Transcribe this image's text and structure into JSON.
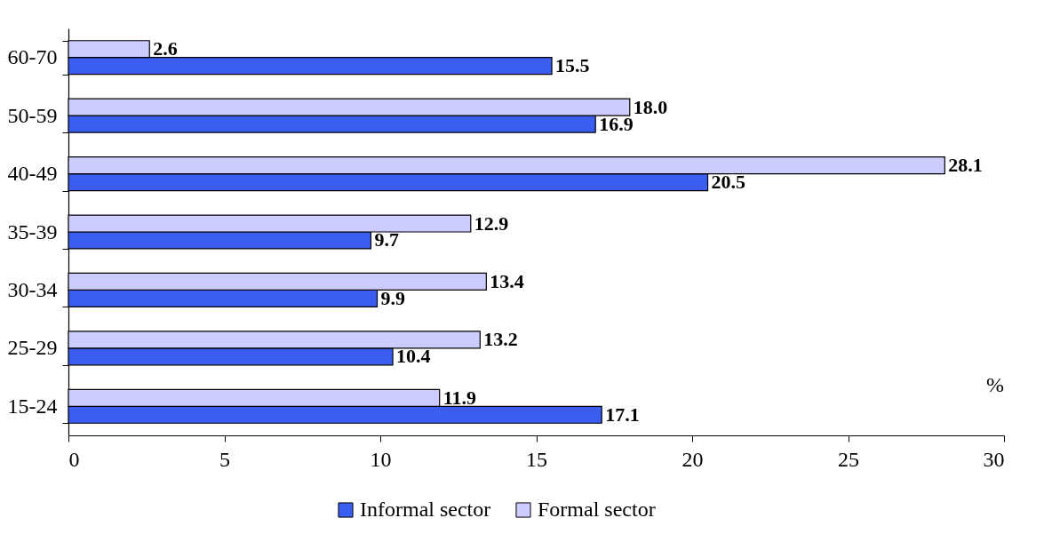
{
  "chart_data": {
    "type": "bar",
    "orientation": "horizontal",
    "categories": [
      "60-70",
      "50-59",
      "40-49",
      "35-39",
      "30-34",
      "25-29",
      "15-24"
    ],
    "series": [
      {
        "name": "Informal sector",
        "color": "#3c5ef0",
        "values": [
          15.5,
          16.9,
          20.5,
          9.7,
          9.9,
          10.4,
          17.1
        ],
        "value_labels": [
          "15.5",
          "16.9",
          "20.5",
          "9.7",
          "9.9",
          "10.4",
          "17.1"
        ]
      },
      {
        "name": "Formal sector",
        "color": "#ccccff",
        "values": [
          2.6,
          18.0,
          28.1,
          12.9,
          13.4,
          13.2,
          11.9
        ],
        "value_labels": [
          "2.6",
          "18.0",
          "28.1",
          "12.9",
          "13.4",
          "13.2",
          "11.9"
        ]
      }
    ],
    "xlim": [
      0,
      30
    ],
    "xticks": [
      0,
      5,
      10,
      15,
      20,
      25,
      30
    ],
    "annotations": [
      "%"
    ],
    "legend": "bottom",
    "grid": false
  }
}
